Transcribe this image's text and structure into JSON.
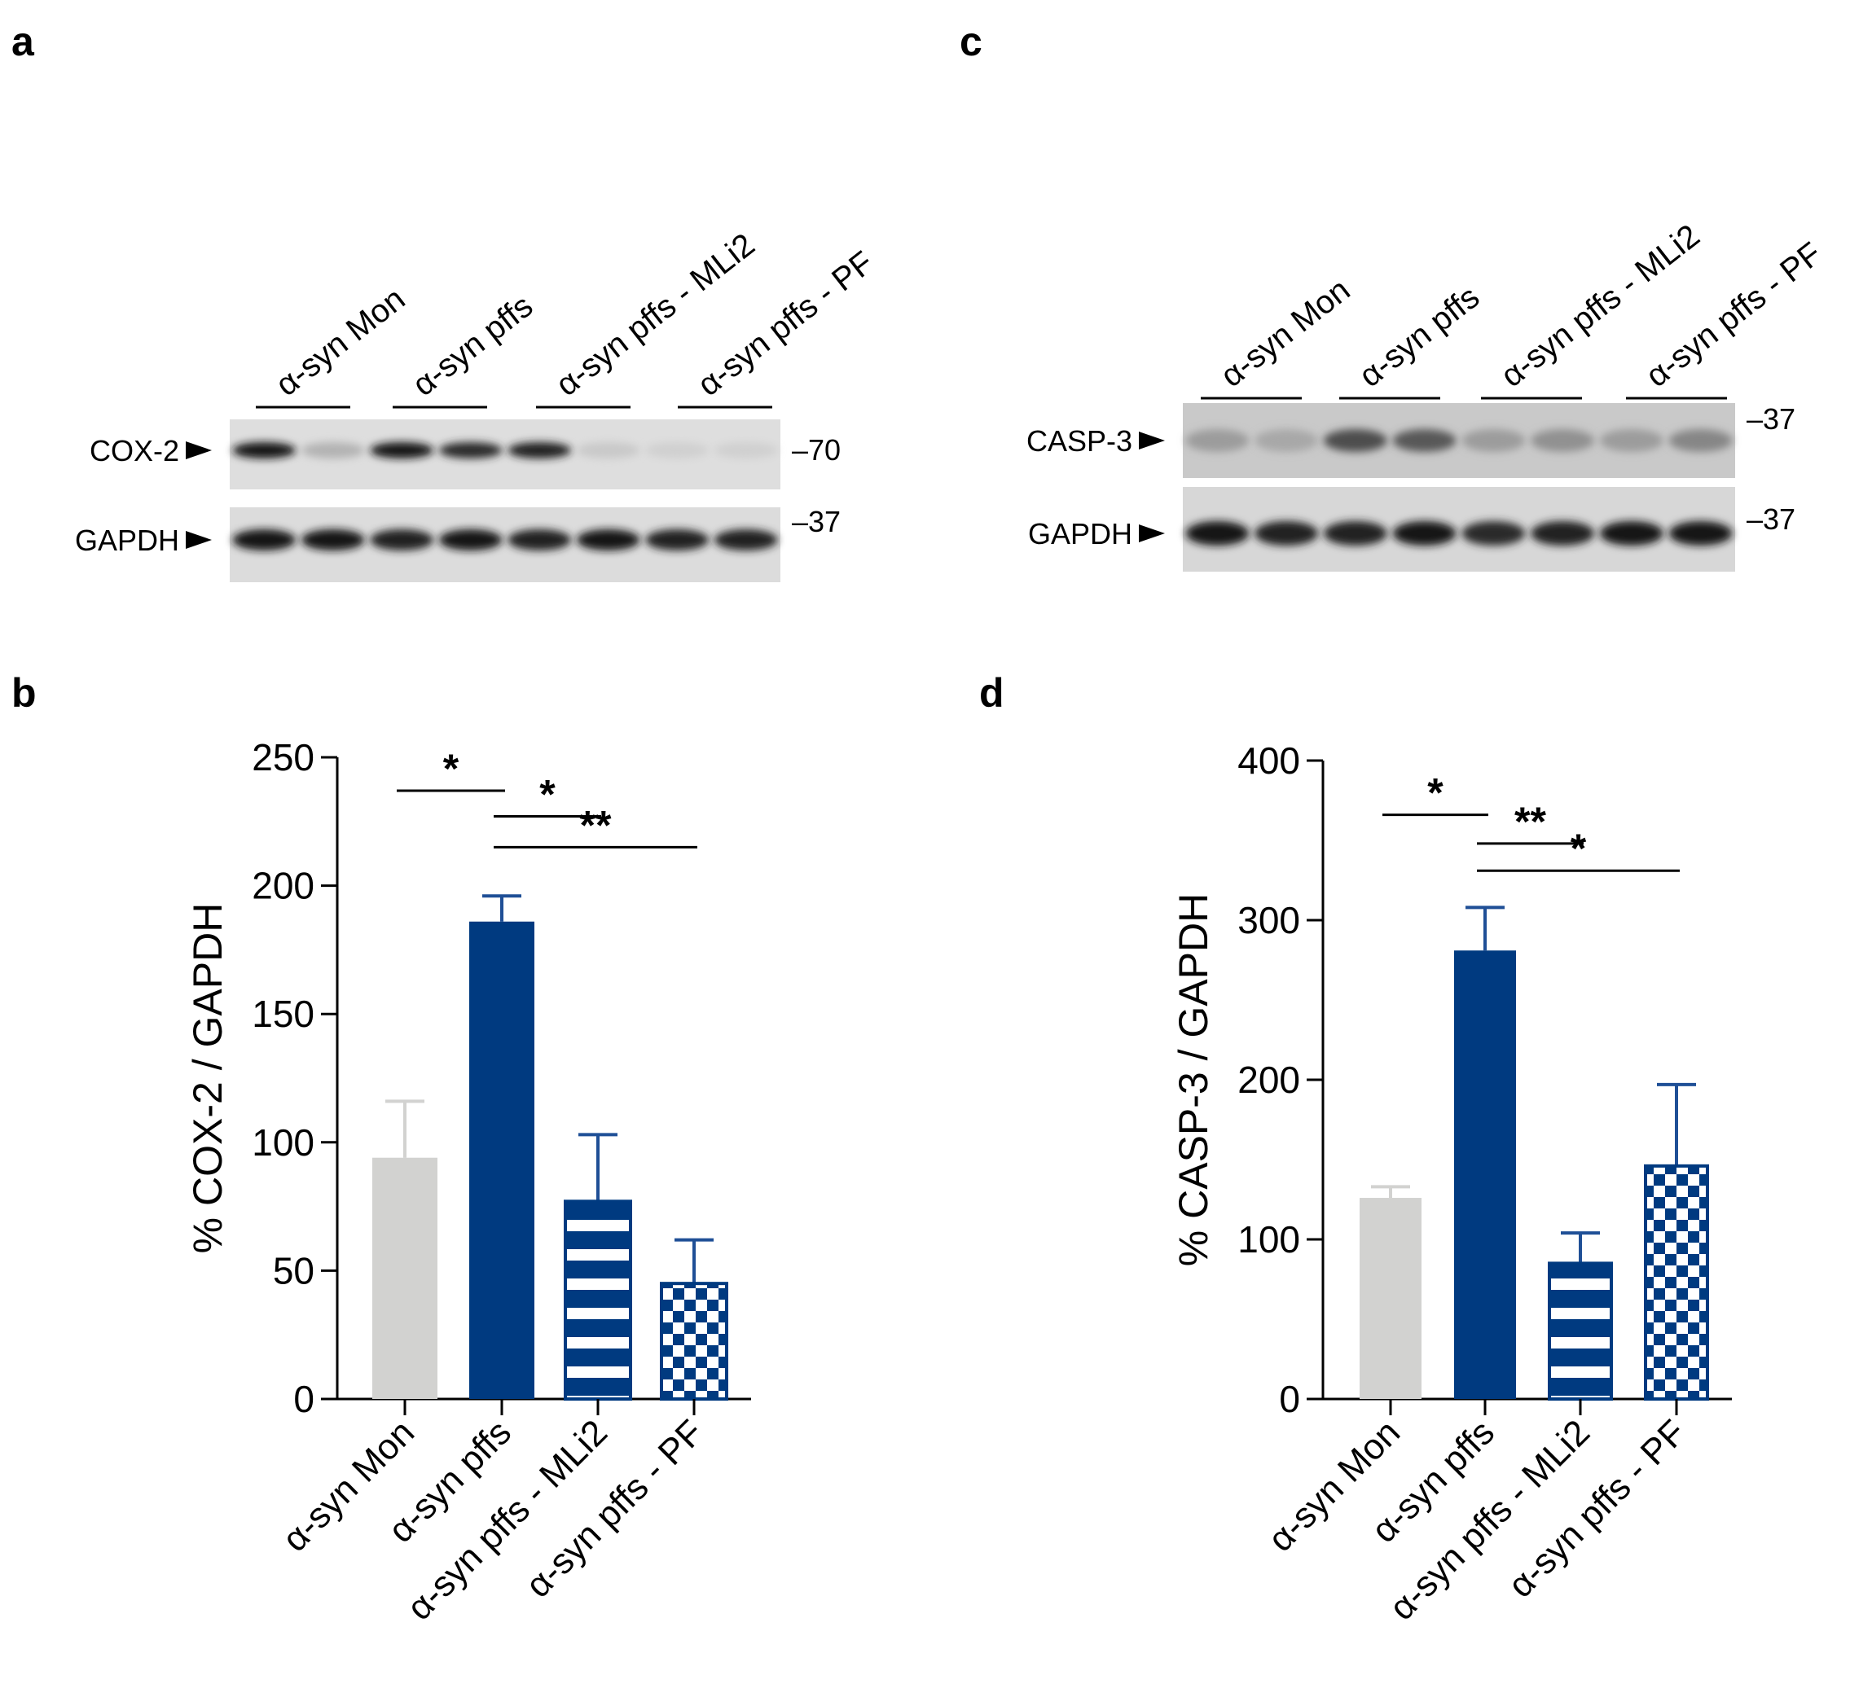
{
  "panel_labels": {
    "a": "a",
    "b": "b",
    "c": "c",
    "d": "d"
  },
  "colors": {
    "control_gray": "#d2d2d0",
    "navy": "#003a80",
    "error_blue": "#1f4f96",
    "black": "#000000",
    "blot_bg": "#dcdcdc"
  },
  "blot_a": {
    "lanes": [
      "α-syn Mon",
      "α-syn pffs",
      "α-syn pffs - MLi2",
      "α-syn pffs - PF"
    ],
    "rows": [
      {
        "label": "COX-2",
        "marker": "–70",
        "band_intensity": [
          0.95,
          0.25,
          0.95,
          0.85,
          0.9,
          0.15,
          0.12,
          0.12
        ]
      },
      {
        "label": "GAPDH",
        "marker": "–37",
        "band_intensity": [
          0.95,
          0.95,
          0.9,
          0.95,
          0.9,
          0.95,
          0.9,
          0.9
        ]
      }
    ]
  },
  "blot_c": {
    "lanes": [
      "α-syn Mon",
      "α-syn pffs",
      "α-syn pffs - MLi2",
      "α-syn pffs - PF"
    ],
    "rows": [
      {
        "label": "CASP-3",
        "marker": "–37",
        "band_intensity": [
          0.35,
          0.3,
          0.7,
          0.65,
          0.35,
          0.4,
          0.35,
          0.45
        ]
      },
      {
        "label": "GAPDH",
        "marker": "–37",
        "band_intensity": [
          0.95,
          0.9,
          0.9,
          0.95,
          0.85,
          0.9,
          0.95,
          0.95
        ]
      }
    ]
  },
  "chart_data": [
    {
      "panel": "b",
      "type": "bar",
      "ylabel": "% COX-2 / GAPDH",
      "categories": [
        "α-syn Mon",
        "α-syn pffs",
        "α-syn pffs - MLi2",
        "α-syn pffs - PF"
      ],
      "values": [
        94,
        186,
        77,
        45
      ],
      "errors": [
        22,
        10,
        26,
        17
      ],
      "styles": [
        "solid-gray",
        "solid-navy",
        "horizontal-stripes",
        "checker"
      ],
      "ylim": [
        0,
        250
      ],
      "yticks": [
        0,
        50,
        100,
        150,
        200,
        250
      ],
      "significance": [
        {
          "from": 0,
          "to": 1,
          "label": "*",
          "y": 237
        },
        {
          "from": 1,
          "to": 2,
          "label": "*",
          "y": 227
        },
        {
          "from": 1,
          "to": 3,
          "label": "**",
          "y": 215
        }
      ]
    },
    {
      "panel": "d",
      "type": "bar",
      "ylabel": "% CASP-3 / GAPDH",
      "categories": [
        "α-syn Mon",
        "α-syn pffs",
        "α-syn pffs - MLi2",
        "α-syn pffs - PF"
      ],
      "values": [
        126,
        281,
        85,
        146
      ],
      "errors": [
        7,
        27,
        19,
        51
      ],
      "styles": [
        "solid-gray",
        "solid-navy",
        "horizontal-stripes",
        "checker"
      ],
      "ylim": [
        0,
        400
      ],
      "yticks": [
        0,
        100,
        200,
        300,
        400
      ],
      "significance": [
        {
          "from": 0,
          "to": 1,
          "label": "*",
          "y": 366
        },
        {
          "from": 1,
          "to": 2,
          "label": "**",
          "y": 348
        },
        {
          "from": 1,
          "to": 3,
          "label": "*",
          "y": 331
        }
      ]
    }
  ]
}
